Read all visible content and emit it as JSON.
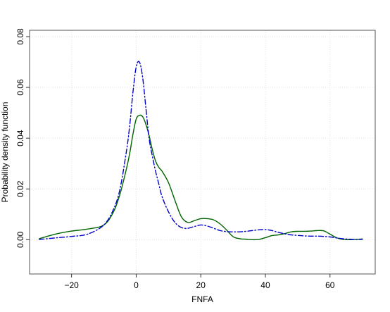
{
  "chart_data": {
    "type": "line",
    "title": "",
    "xlabel": "FNFA",
    "ylabel": "Probability density function",
    "xlim": [
      -33,
      74
    ],
    "ylim": [
      -0.0135,
      0.0825
    ],
    "xticks": [
      -20,
      0,
      20,
      40,
      60
    ],
    "xtick_labels": [
      "−20",
      "0",
      "20",
      "40",
      "60"
    ],
    "yticks": [
      0.0,
      0.02,
      0.04,
      0.06,
      0.08
    ],
    "ytick_labels": [
      "0.00",
      "0.02",
      "0.04",
      "0.06",
      "0.08"
    ],
    "grid": true,
    "legend": "none",
    "series": [
      {
        "color": "#006400",
        "style": "solid",
        "x": [
          -30,
          -25,
          -20,
          -15,
          -10,
          -7,
          -5,
          -3,
          -2,
          -1,
          0,
          1,
          2,
          3,
          4,
          5,
          6,
          7,
          8,
          10,
          12,
          14,
          16,
          18,
          20,
          22,
          24,
          26,
          28,
          30,
          32,
          34,
          36,
          38,
          40,
          42,
          44,
          46,
          48,
          50,
          52,
          54,
          56,
          58,
          60,
          62,
          64,
          66,
          68,
          70
        ],
        "y": [
          0.0004,
          0.0022,
          0.0034,
          0.0042,
          0.0058,
          0.011,
          0.018,
          0.028,
          0.034,
          0.0415,
          0.0475,
          0.049,
          0.0485,
          0.0455,
          0.041,
          0.0355,
          0.031,
          0.0285,
          0.027,
          0.0225,
          0.0155,
          0.009,
          0.0068,
          0.0075,
          0.0083,
          0.0083,
          0.0078,
          0.0062,
          0.0038,
          0.0012,
          0.0004,
          0.0002,
          0.0,
          0.0001,
          0.0008,
          0.0016,
          0.0019,
          0.0024,
          0.0031,
          0.0033,
          0.0033,
          0.0034,
          0.0036,
          0.0035,
          0.0022,
          0.0008,
          0.0001,
          0.0,
          0.0001,
          0.0003
        ]
      },
      {
        "color": "#0000cc",
        "style": "dashdot",
        "x": [
          -30,
          -25,
          -20,
          -15,
          -10,
          -7,
          -5,
          -3,
          -2,
          -1,
          0,
          1,
          2,
          3,
          4,
          5,
          6,
          7,
          8,
          10,
          12,
          14,
          16,
          18,
          20,
          22,
          24,
          26,
          28,
          30,
          32,
          34,
          36,
          38,
          40,
          42,
          44,
          46,
          48,
          50,
          52,
          54,
          56,
          58,
          60,
          62,
          64,
          66,
          68,
          70
        ],
        "y": [
          0.0001,
          0.0007,
          0.0013,
          0.0022,
          0.0058,
          0.012,
          0.02,
          0.035,
          0.045,
          0.058,
          0.068,
          0.07,
          0.064,
          0.052,
          0.04,
          0.033,
          0.027,
          0.022,
          0.017,
          0.011,
          0.0068,
          0.0048,
          0.0045,
          0.0052,
          0.0058,
          0.0054,
          0.0045,
          0.0036,
          0.0032,
          0.0031,
          0.0031,
          0.0033,
          0.0036,
          0.0039,
          0.004,
          0.0036,
          0.0029,
          0.0023,
          0.0019,
          0.0017,
          0.0015,
          0.0014,
          0.0014,
          0.0013,
          0.0011,
          0.0007,
          0.0004,
          0.0002,
          0.0001,
          0.0001
        ]
      }
    ]
  }
}
